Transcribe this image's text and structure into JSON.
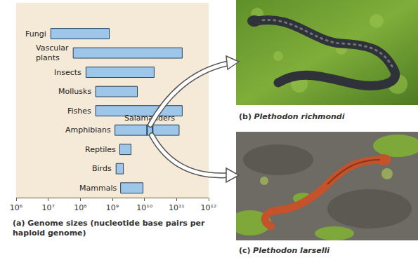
{
  "chart_data": {
    "type": "range_bar",
    "orientation": "horizontal",
    "log": "x",
    "title": "(a) Genome sizes (nucleotide base pairs per haploid genome)",
    "categories": [
      "Fungi",
      "Vascular plants",
      "Insects",
      "Mollusks",
      "Fishes",
      "Amphibians",
      "Reptiles",
      "Birds",
      "Mammals"
    ],
    "values": [
      [
        12000000,
        800000000
      ],
      [
        60000000,
        150000000000
      ],
      [
        150000000,
        20000000000
      ],
      [
        300000000,
        6000000000
      ],
      [
        300000000,
        150000000000
      ],
      [
        1200000000,
        120000000000
      ],
      [
        1700000000,
        3800000000
      ],
      [
        1300000000,
        2200000000
      ],
      [
        1800000000,
        9000000000
      ]
    ],
    "color": "#9ec6e8",
    "xlim": [
      1000000,
      1000000000000
    ],
    "xticks": [
      {
        "value": 1000000,
        "label": "10⁶"
      },
      {
        "value": 10000000,
        "label": "10⁷"
      },
      {
        "value": 100000000,
        "label": "10⁸"
      },
      {
        "value": 1000000000,
        "label": "10⁹"
      },
      {
        "value": 10000000000,
        "label": "10¹⁰"
      },
      {
        "value": 100000000000,
        "label": "10¹¹"
      },
      {
        "value": 1000000000000,
        "label": "10¹²"
      }
    ],
    "grid": false,
    "tick_labels": "x",
    "annotations": [
      {
        "text": "Salamanders",
        "category": "Amphibians",
        "values": [
          12000000000,
          18000000000
        ]
      }
    ]
  },
  "photos": [
    {
      "label": "(b)",
      "species": "Plethodon richmondi"
    },
    {
      "label": "(c)",
      "species": "Plethodon larselli"
    }
  ]
}
